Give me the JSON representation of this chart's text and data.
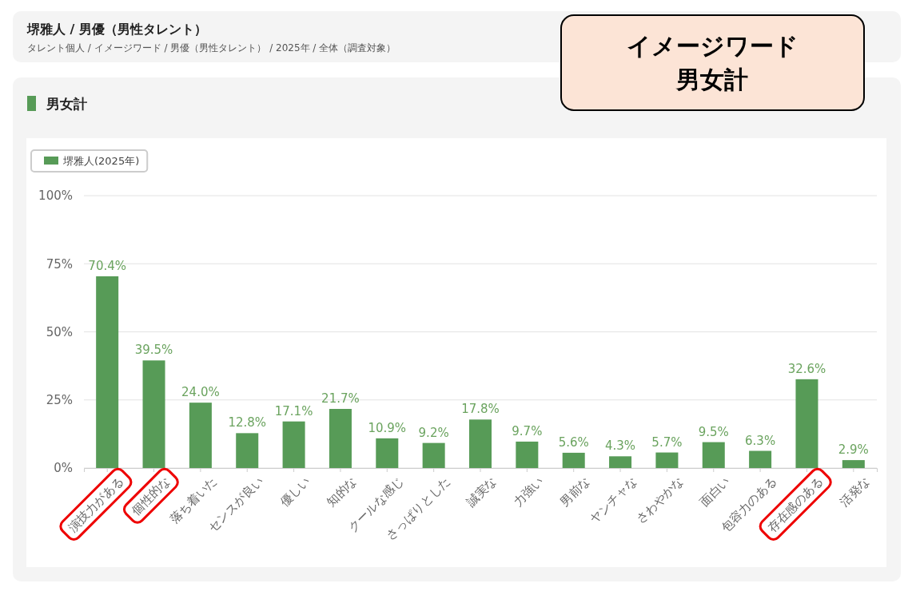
{
  "chart_data": {
    "type": "bar",
    "title": "堺雅人 / 男優（男性タレント）",
    "subtitle": "タレント個人 / イメージワード / 男優（男性タレント）  / 2025年 / 全体（調査対象）",
    "annotations": [
      "イメージワード",
      "男女計",
      "男女計"
    ],
    "categories": [
      "演技力がある",
      "個性的な",
      "落ち着いた",
      "センスが良い",
      "優しい",
      "知的な",
      "クールな感じ",
      "さっぱりとした",
      "誠実な",
      "力強い",
      "男前な",
      "ヤンチャな",
      "さわやかな",
      "面白い",
      "包容力のある",
      "存在感のある",
      "活発な"
    ],
    "series": [
      {
        "name": "堺雅人(2025年)",
        "color": "#579b57",
        "values": [
          70.4,
          39.5,
          24.0,
          12.8,
          17.1,
          21.7,
          10.9,
          9.2,
          17.8,
          9.7,
          5.6,
          4.3,
          5.7,
          9.5,
          6.3,
          32.6,
          2.9
        ],
        "value_labels": [
          "70.4%",
          "39.5%",
          "24.0%",
          "12.8%",
          "17.1%",
          "21.7%",
          "10.9%",
          "9.2%",
          "17.8%",
          "9.7%",
          "5.6%",
          "4.3%",
          "5.7%",
          "9.5%",
          "6.3%",
          "32.6%",
          "2.9%"
        ]
      }
    ],
    "ylim": [
      0,
      100
    ],
    "yticks": [
      {
        "value": 0,
        "label": "0%"
      },
      {
        "value": 25,
        "label": "25%"
      },
      {
        "value": 50,
        "label": "50%"
      },
      {
        "value": 75,
        "label": "75%"
      },
      {
        "value": 100,
        "label": "100%"
      }
    ],
    "grid": "y",
    "legend": "top left"
  }
}
